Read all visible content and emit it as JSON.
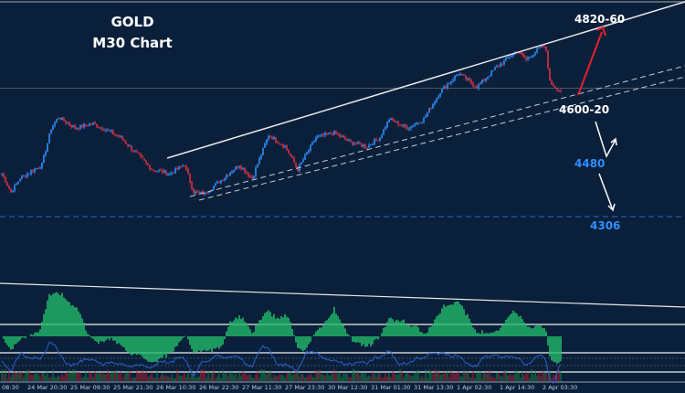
{
  "chart_data": {
    "type": "candlestick",
    "title": "GOLD",
    "subtitle": "M30 Chart",
    "x_tick_labels": [
      "08:30",
      "24 Mar 20:30",
      "25 Mar 09:30",
      "25 Mar 21:30",
      "26 Mar 10:30",
      "26 Mar 22:30",
      "27 Mar 11:30",
      "27 Mar 23:30",
      "30 Mar 12:30",
      "31 Mar 01:30",
      "31 Mar 13:30",
      "1 Apr 02:30",
      "1 Apr 14:30",
      "2 Apr 03:30"
    ],
    "price_path": [
      {
        "bar": 0,
        "price": 4409
      },
      {
        "bar": 5,
        "price": 4365
      },
      {
        "bar": 10,
        "price": 4398
      },
      {
        "bar": 22,
        "price": 4431
      },
      {
        "bar": 27,
        "price": 4519
      },
      {
        "bar": 31,
        "price": 4546
      },
      {
        "bar": 40,
        "price": 4519
      },
      {
        "bar": 50,
        "price": 4530
      },
      {
        "bar": 65,
        "price": 4497
      },
      {
        "bar": 82,
        "price": 4420
      },
      {
        "bar": 92,
        "price": 4409
      },
      {
        "bar": 100,
        "price": 4431
      },
      {
        "bar": 105,
        "price": 4365
      },
      {
        "bar": 111,
        "price": 4361
      },
      {
        "bar": 130,
        "price": 4431
      },
      {
        "bar": 137,
        "price": 4398
      },
      {
        "bar": 146,
        "price": 4502
      },
      {
        "bar": 155,
        "price": 4475
      },
      {
        "bar": 162,
        "price": 4420
      },
      {
        "bar": 172,
        "price": 4497
      },
      {
        "bar": 182,
        "price": 4508
      },
      {
        "bar": 190,
        "price": 4486
      },
      {
        "bar": 200,
        "price": 4475
      },
      {
        "bar": 207,
        "price": 4497
      },
      {
        "bar": 212,
        "price": 4541
      },
      {
        "bar": 222,
        "price": 4519
      },
      {
        "bar": 231,
        "price": 4541
      },
      {
        "bar": 240,
        "price": 4607
      },
      {
        "bar": 250,
        "price": 4651
      },
      {
        "bar": 260,
        "price": 4618
      },
      {
        "bar": 270,
        "price": 4662
      },
      {
        "bar": 282,
        "price": 4706
      },
      {
        "bar": 287,
        "price": 4684
      },
      {
        "bar": 296,
        "price": 4717
      },
      {
        "bar": 298,
        "price": 4706
      },
      {
        "bar": 300,
        "price": 4629
      },
      {
        "bar": 306,
        "price": 4607
      }
    ],
    "annotations": [
      {
        "text": "4820-60",
        "color": "#ffffff",
        "arrow": "up",
        "arrow_color": "#e8202a"
      },
      {
        "text": "4600-20",
        "color": "#ffffff"
      },
      {
        "text": "4480",
        "color": "#2f8fff",
        "arrow": "down-then-up",
        "arrow_color": "#ffffff"
      },
      {
        "text": "4306",
        "color": "#2f8fff",
        "arrow": "down",
        "arrow_color": "#ffffff"
      }
    ],
    "horizontal_levels": [
      {
        "price": 4306,
        "style": "dashed",
        "color": "#1f6fd0"
      },
      {
        "price": 4615,
        "style": "solid",
        "color": "#4a5666"
      }
    ],
    "colors": {
      "background": "#0a1f3a",
      "bull": "#2f8fff",
      "bear": "#e03040",
      "indicator_fill": "#22b86a",
      "rsi_line": "#2a5fd0"
    },
    "grid": false
  }
}
